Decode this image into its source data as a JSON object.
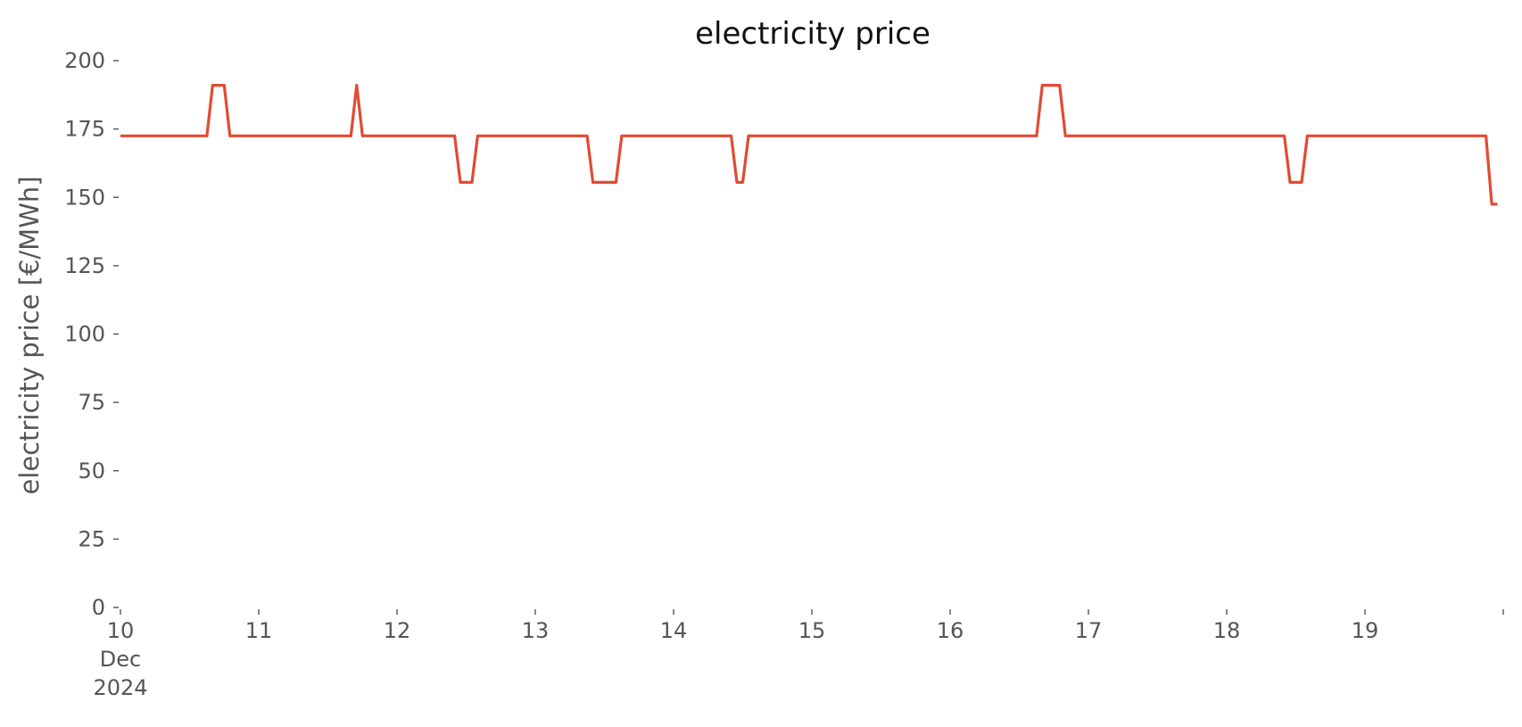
{
  "chart_data": {
    "type": "line",
    "title": "electricity price",
    "xlabel": "",
    "ylabel": "electricity price [€/MWh]",
    "ylim": [
      0,
      200
    ],
    "yticks": [
      0,
      25,
      50,
      75,
      100,
      125,
      150,
      175,
      200
    ],
    "ytick_labels": [
      "0",
      "25",
      "50",
      "75",
      "100",
      "125",
      "150",
      "175",
      "200"
    ],
    "xlim": [
      "2024-12-10 00:00",
      "2024-12-20 00:00"
    ],
    "xticks": [
      {
        "value": "2024-12-10",
        "label": [
          "10",
          "Dec",
          "2024"
        ]
      },
      {
        "value": "2024-12-11",
        "label": [
          "11"
        ]
      },
      {
        "value": "2024-12-12",
        "label": [
          "12"
        ]
      },
      {
        "value": "2024-12-13",
        "label": [
          "13"
        ]
      },
      {
        "value": "2024-12-14",
        "label": [
          "14"
        ]
      },
      {
        "value": "2024-12-15",
        "label": [
          "15"
        ]
      },
      {
        "value": "2024-12-16",
        "label": [
          "16"
        ]
      },
      {
        "value": "2024-12-17",
        "label": [
          "17"
        ]
      },
      {
        "value": "2024-12-18",
        "label": [
          "18"
        ]
      },
      {
        "value": "2024-12-19",
        "label": [
          "19"
        ]
      },
      {
        "value": "2024-12-20",
        "label": [
          ""
        ]
      }
    ],
    "grid": false,
    "series": [
      {
        "name": "",
        "color": "#E24A33",
        "points": [
          {
            "x": "2024-12-10 00:00",
            "y": 172.5
          },
          {
            "x": "2024-12-10 15:00",
            "y": 172.5
          },
          {
            "x": "2024-12-10 16:00",
            "y": 191
          },
          {
            "x": "2024-12-10 18:00",
            "y": 191
          },
          {
            "x": "2024-12-10 19:00",
            "y": 172.5
          },
          {
            "x": "2024-12-11 16:00",
            "y": 172.5
          },
          {
            "x": "2024-12-11 17:00",
            "y": 191
          },
          {
            "x": "2024-12-11 18:00",
            "y": 172.5
          },
          {
            "x": "2024-12-12 10:00",
            "y": 172.5
          },
          {
            "x": "2024-12-12 11:00",
            "y": 155.5
          },
          {
            "x": "2024-12-12 13:00",
            "y": 155.5
          },
          {
            "x": "2024-12-12 14:00",
            "y": 172.5
          },
          {
            "x": "2024-12-13 09:00",
            "y": 172.5
          },
          {
            "x": "2024-12-13 10:00",
            "y": 155.5
          },
          {
            "x": "2024-12-13 14:00",
            "y": 155.5
          },
          {
            "x": "2024-12-13 15:00",
            "y": 172.5
          },
          {
            "x": "2024-12-14 10:00",
            "y": 172.5
          },
          {
            "x": "2024-12-14 11:00",
            "y": 155.5
          },
          {
            "x": "2024-12-14 12:00",
            "y": 155.5
          },
          {
            "x": "2024-12-14 13:00",
            "y": 172.5
          },
          {
            "x": "2024-12-16 15:00",
            "y": 172.5
          },
          {
            "x": "2024-12-16 16:00",
            "y": 191
          },
          {
            "x": "2024-12-16 19:00",
            "y": 191
          },
          {
            "x": "2024-12-16 20:00",
            "y": 172.5
          },
          {
            "x": "2024-12-18 10:00",
            "y": 172.5
          },
          {
            "x": "2024-12-18 11:00",
            "y": 155.5
          },
          {
            "x": "2024-12-18 13:00",
            "y": 155.5
          },
          {
            "x": "2024-12-18 14:00",
            "y": 172.5
          },
          {
            "x": "2024-12-19 21:00",
            "y": 172.5
          },
          {
            "x": "2024-12-19 22:00",
            "y": 147.5
          },
          {
            "x": "2024-12-19 23:00",
            "y": 147.5
          }
        ]
      }
    ]
  }
}
